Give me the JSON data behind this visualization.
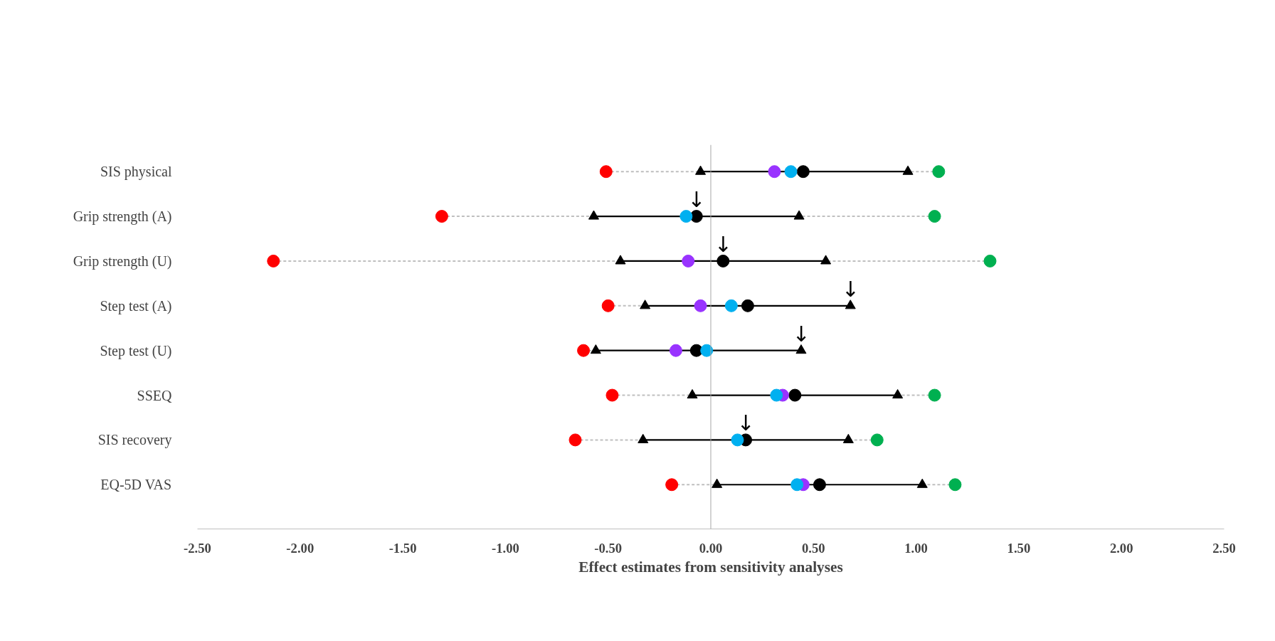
{
  "chart_data": {
    "type": "scatter",
    "orientation": "horizontal",
    "xlabel": "Effect estimates from sensitivity analyses",
    "categories": [
      "SIS physical",
      "Grip strength (A)",
      "Grip strength (U)",
      "Step test (A)",
      "Step test (U)",
      "SSEQ",
      "SIS recovery",
      "EQ-5D VAS"
    ],
    "xlim": [
      -2.5,
      2.5
    ],
    "xticks": [
      {
        "value": -2.5,
        "label": "-2.50"
      },
      {
        "value": -2,
        "label": "-2.00"
      },
      {
        "value": -1.5,
        "label": "-1.50"
      },
      {
        "value": -1,
        "label": "-1.00"
      },
      {
        "value": -0.5,
        "label": "-0.50"
      },
      {
        "value": 0,
        "label": "0.00"
      },
      {
        "value": 0.5,
        "label": "0.50"
      },
      {
        "value": 1,
        "label": "1.00"
      },
      {
        "value": 1.5,
        "label": "1.50"
      },
      {
        "value": 2,
        "label": "2.00"
      },
      {
        "value": 2.5,
        "label": "2.50"
      }
    ],
    "grid": false,
    "marker": "circle",
    "ref_lines": [
      {
        "axis": "x",
        "value": 0,
        "color": "#a6a6a6"
      }
    ],
    "series": [
      {
        "color": "#ff0000",
        "line_style": "dashed",
        "values": [
          -0.51,
          -1.31,
          -2.13,
          -0.5,
          -0.62,
          -0.48,
          -0.66,
          -0.19
        ]
      },
      {
        "color": "#00b050",
        "line_style": "dashed",
        "values": [
          1.11,
          1.09,
          1.36,
          null,
          null,
          1.09,
          0.81,
          1.19
        ]
      },
      {
        "color": "#000000",
        "marker": "triangle",
        "values": [
          -0.05,
          -0.57,
          -0.44,
          -0.32,
          -0.56,
          -0.09,
          -0.33,
          0.03
        ]
      },
      {
        "color": "#000000",
        "marker": "triangle",
        "line_style": "solid",
        "values": [
          0.96,
          0.43,
          0.56,
          0.68,
          0.44,
          0.91,
          0.67,
          1.03
        ]
      },
      {
        "color": "#000000",
        "values": [
          0.45,
          -0.07,
          0.06,
          0.18,
          -0.07,
          0.41,
          0.17,
          0.53
        ]
      },
      {
        "color": "#9933ff",
        "values": [
          0.31,
          null,
          -0.11,
          -0.05,
          -0.17,
          0.35,
          null,
          0.45
        ]
      },
      {
        "color": "#00b0f0",
        "values": [
          0.39,
          -0.12,
          null,
          0.1,
          -0.02,
          0.32,
          0.13,
          0.42
        ]
      }
    ],
    "annotations": [
      {
        "text": "↓",
        "x": -0.07,
        "y": "Grip strength (A)"
      },
      {
        "text": "↓",
        "x": 0.06,
        "y": "Grip strength (U)"
      },
      {
        "text": "↓",
        "x": 0.68,
        "y": "Step test (A)"
      },
      {
        "text": "↓",
        "x": 0.44,
        "y": "Step test (U)"
      },
      {
        "text": "↓",
        "x": 0.17,
        "y": "SIS recovery"
      }
    ]
  }
}
